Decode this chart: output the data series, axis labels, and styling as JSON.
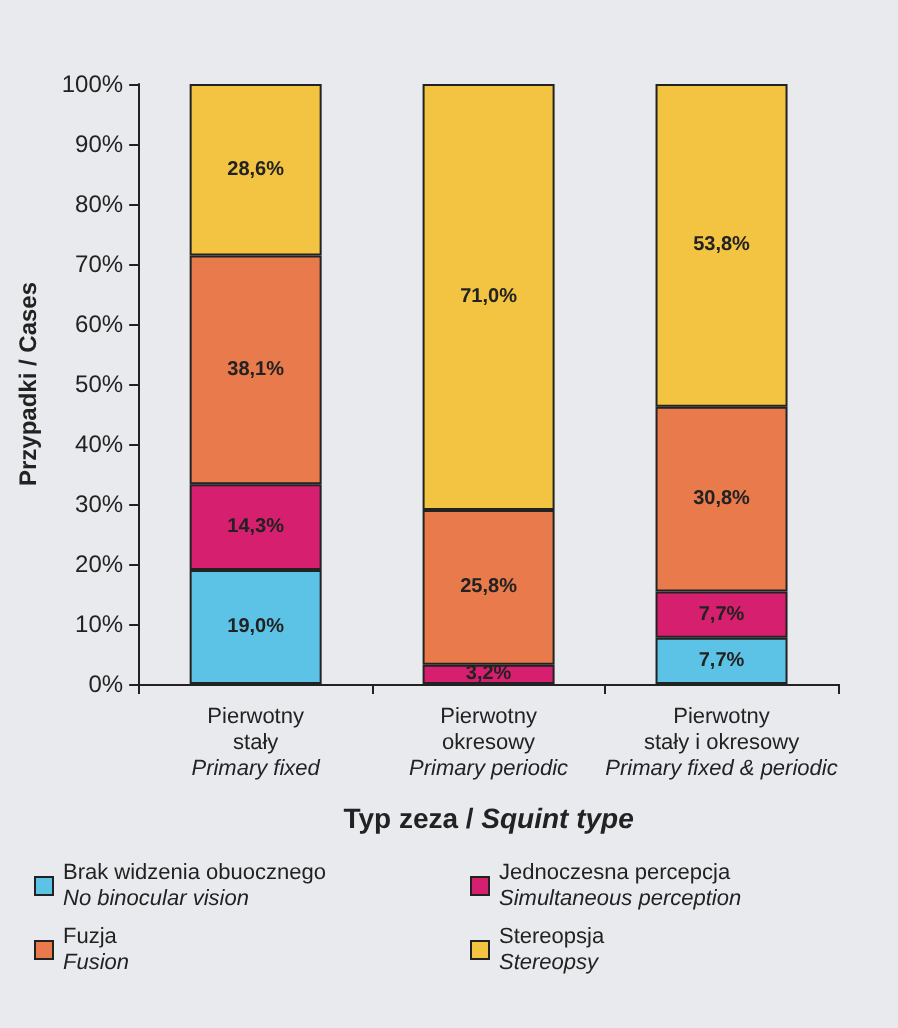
{
  "chart_data": {
    "type": "bar",
    "stacked": true,
    "xlabel": "Typ zeza / Squint type",
    "ylabel": "Przypadki / Cases",
    "categories": [
      "Pierwotny\nstały\nPrimary fixed",
      "Pierwotny\nokresowy\nPrimary periodic",
      "Pierwotny\nstały i okresowy\nPrimary fixed & periodic"
    ],
    "series": [
      {
        "name": "Brak widzenia obuocznego\nNo binocular vision",
        "color": "#5cc3e6",
        "values": [
          19.0,
          null,
          7.7
        ],
        "value_labels": [
          "19,0%",
          null,
          "7,7%"
        ]
      },
      {
        "name": "Jednoczesna percepcja\nSimultaneous perception",
        "color": "#d61f6e",
        "values": [
          14.3,
          3.2,
          7.7
        ],
        "value_labels": [
          "14,3%",
          "3,2%",
          "7,7%"
        ]
      },
      {
        "name": "Fuzja\nFusion",
        "color": "#e97a4c",
        "values": [
          38.1,
          25.8,
          30.8
        ],
        "value_labels": [
          "38,1%",
          "25,8%",
          "30,8%"
        ]
      },
      {
        "name": "Stereopsja\nStereopsy",
        "color": "#f3c441",
        "values": [
          28.6,
          71.0,
          53.8
        ],
        "value_labels": [
          "28,6%",
          "71,0%",
          "53,8%"
        ]
      }
    ],
    "ylim": [
      0,
      100
    ],
    "yticks": [
      {
        "value": 0,
        "label": "0%"
      },
      {
        "value": 10,
        "label": "10%"
      },
      {
        "value": 20,
        "label": "20%"
      },
      {
        "value": 30,
        "label": "30%"
      },
      {
        "value": 40,
        "label": "40%"
      },
      {
        "value": 50,
        "label": "50%"
      },
      {
        "value": 60,
        "label": "60%"
      },
      {
        "value": 70,
        "label": "70%"
      },
      {
        "value": 80,
        "label": "80%"
      },
      {
        "value": 90,
        "label": "90%"
      },
      {
        "value": 100,
        "label": "100%"
      }
    ],
    "grid": false,
    "legend": "bottom"
  }
}
